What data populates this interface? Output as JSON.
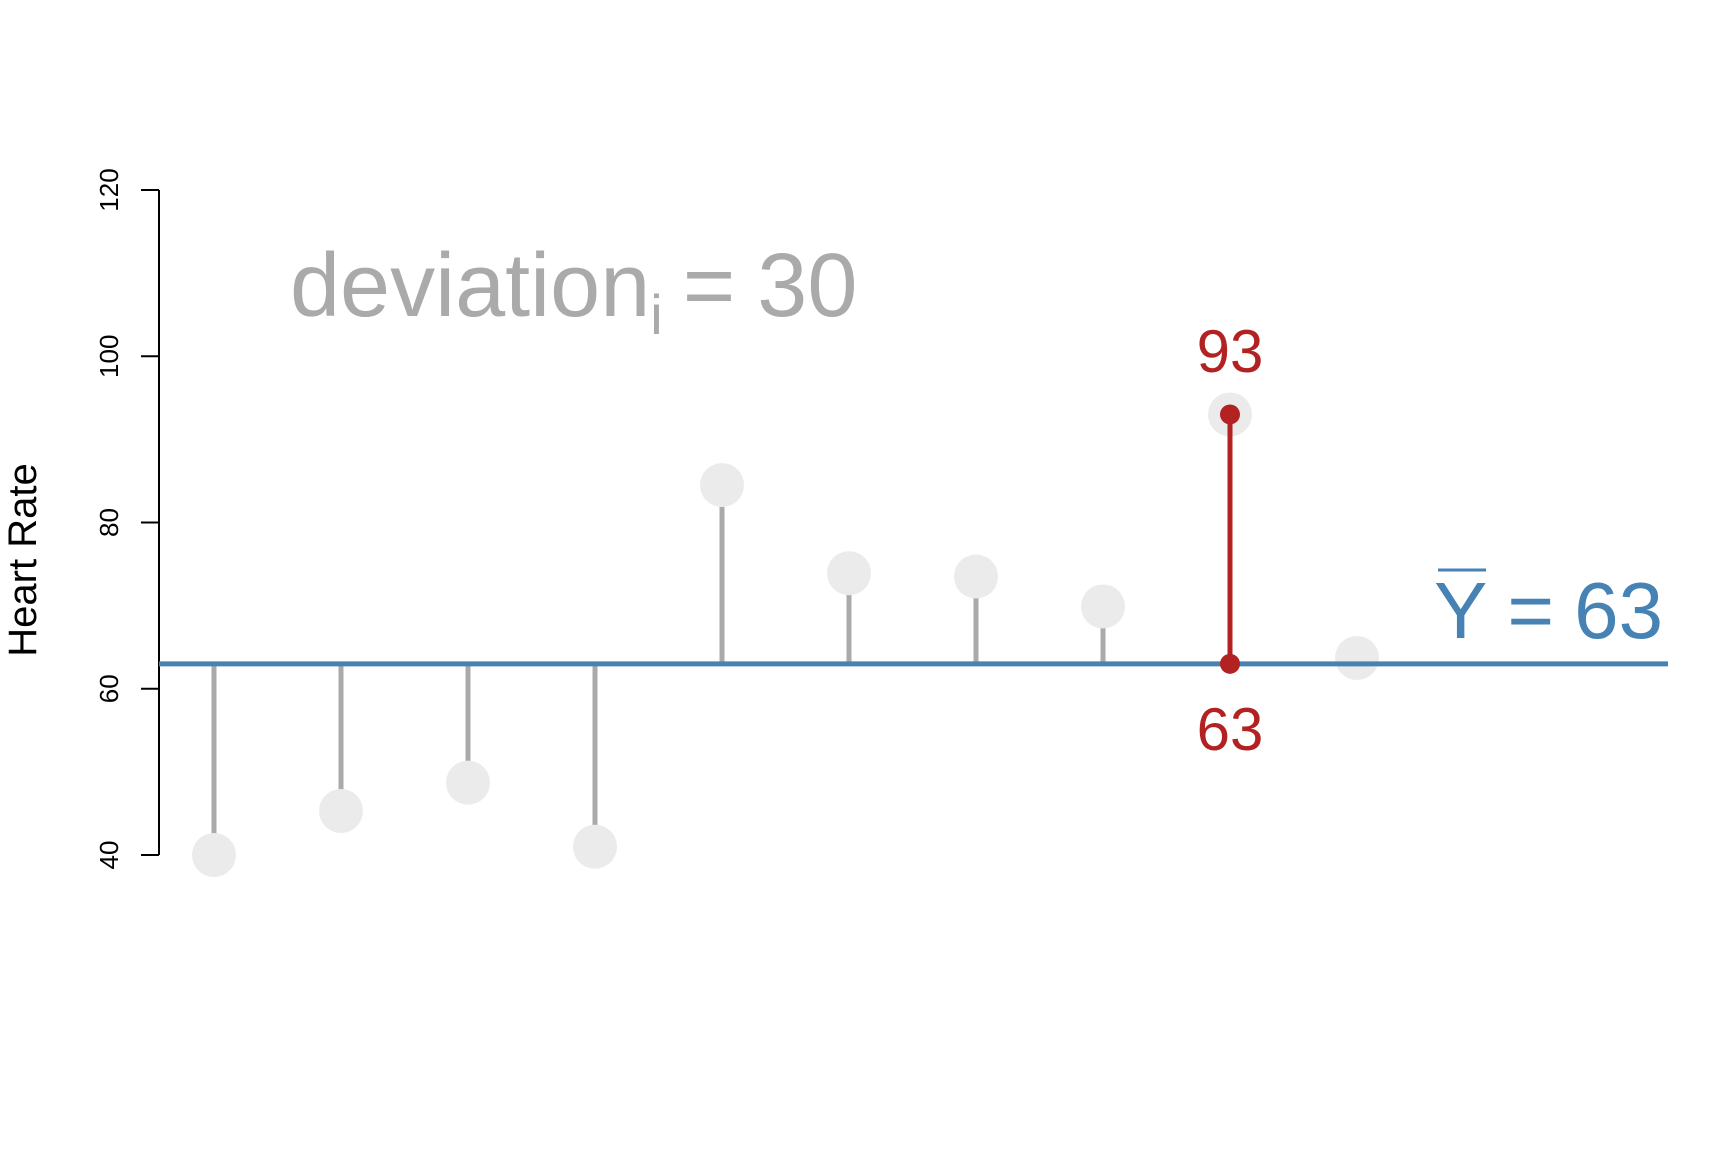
{
  "chart_data": {
    "type": "scatter",
    "ylabel": "Heart Rate",
    "ylim": [
      40,
      120
    ],
    "y_ticks": [
      40,
      60,
      80,
      100,
      120
    ],
    "grid": false,
    "points": [
      {
        "index": 1,
        "y": 40
      },
      {
        "index": 2,
        "y": 45.3
      },
      {
        "index": 3,
        "y": 48.7
      },
      {
        "index": 4,
        "y": 41
      },
      {
        "index": 5,
        "y": 84.5
      },
      {
        "index": 6,
        "y": 73.9
      },
      {
        "index": 7,
        "y": 73.5
      },
      {
        "index": 8,
        "y": 69.9
      },
      {
        "index": 9,
        "y": 93
      },
      {
        "index": 10,
        "y": 63.7
      }
    ],
    "mean": {
      "value": 63,
      "symbol": "Y",
      "equals": "=",
      "value_text": "63"
    },
    "highlight": {
      "index": 9,
      "value": 93,
      "top_label": "93",
      "bottom_label": "63"
    },
    "deviation_annotation": {
      "prefix": "deviation",
      "subscript": "i",
      "equals": "=",
      "value_text": "30"
    },
    "colors": {
      "mean_line": "#4682b4",
      "highlight": "#b22222",
      "deviation": "#aaaaaa",
      "point_fill": "#ebebeb",
      "axis": "#000000"
    }
  }
}
